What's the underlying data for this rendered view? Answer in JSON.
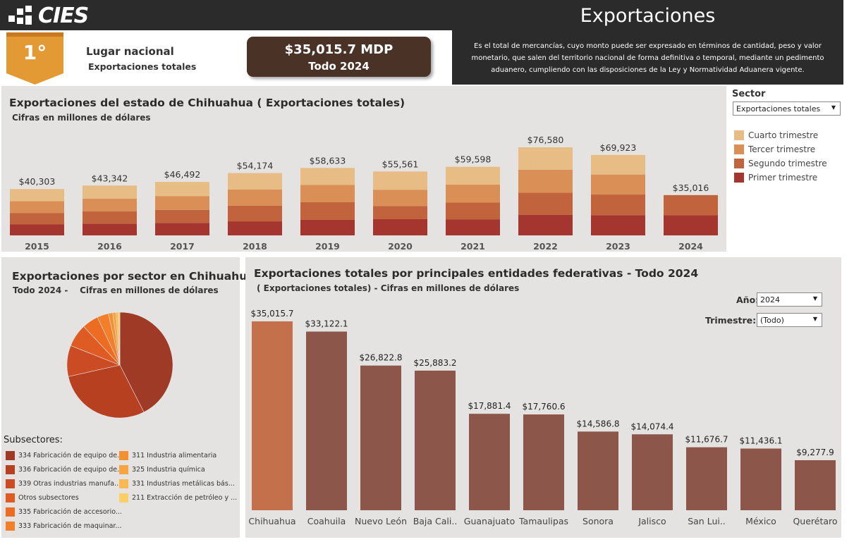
{
  "brand": {
    "logo_text": "CIES"
  },
  "header": {
    "title": "Exportaciones",
    "description": "Es el total de mercancías, cuyo monto puede ser expresado en términos de cantidad, peso y valor monetario, que salen del territorio nacional de forma definitiva o temporal, mediante un pedimento aduanero, cumpliendo con las disposiciones de la Ley y Normatividad Aduanera vigente."
  },
  "ranking": {
    "position": "1°",
    "label": "Lugar nacional",
    "sublabel": "Exportaciones totales"
  },
  "kpi": {
    "value": "$35,015.7 MDP",
    "period": "Todo 2024"
  },
  "annual_panel": {
    "title": "Exportaciones del estado de Chihuahua ( Exportaciones totales)",
    "subtitle": "Cifras en millones de dólares"
  },
  "sector_filter": {
    "label": "Sector",
    "selected": "Exportaciones totales",
    "legend": [
      {
        "label": "Cuarto trimestre",
        "color": "#e8bd85"
      },
      {
        "label": "Tercer trimestre",
        "color": "#d98f55"
      },
      {
        "label": "Segundo trimestre",
        "color": "#c1643e"
      },
      {
        "label": "Primer trimestre",
        "color": "#a4352f"
      }
    ]
  },
  "pie_panel": {
    "title": "Exportaciones por sector en Chihuahua",
    "subtitle": "Todo 2024 -    Cifras en millones de dólares",
    "legend_title": "Subsectores:",
    "legend": [
      {
        "label": "334 Fabricación de equipo de...",
        "color": "#9e3a26"
      },
      {
        "label": "336 Fabricación de equipo de...",
        "color": "#b6401f"
      },
      {
        "label": "339 Otras industrias manufa...",
        "color": "#cb4c24"
      },
      {
        "label": "Otros subsectores",
        "color": "#de5b24"
      },
      {
        "label": "335 Fabricación de accesorio...",
        "color": "#ec6c24"
      },
      {
        "label": "333 Fabricación de maquinar...",
        "color": "#f27f2a"
      },
      {
        "label": "311 Industria alimentaria",
        "color": "#f59030"
      },
      {
        "label": "325 Industria química",
        "color": "#f7a441"
      },
      {
        "label": "331 Industrias metálicas bás...",
        "color": "#f9b851"
      },
      {
        "label": "211 Extracción de petróleo y ...",
        "color": "#fbcf66"
      }
    ]
  },
  "states_panel": {
    "title": "Exportaciones totales por principales entidades federativas - Todo 2024",
    "subtitle": "( Exportaciones totales) - Cifras en millones de dólares",
    "year_label": "Año:",
    "year_value": "2024",
    "quarter_label": "Trimestre:",
    "quarter_value": "(Todo)"
  },
  "chart_data": [
    {
      "type": "bar",
      "stacked": true,
      "title": "Exportaciones del estado de Chihuahua ( Exportaciones totales)",
      "ylabel": "Cifras en millones de dólares",
      "categories": [
        "2015",
        "2016",
        "2017",
        "2018",
        "2019",
        "2020",
        "2021",
        "2022",
        "2023",
        "2024"
      ],
      "totals": [
        "$40,303",
        "$43,342",
        "$46,492",
        "$54,174",
        "$58,633",
        "$55,561",
        "$59,598",
        "$76,580",
        "$69,923",
        "$35,016"
      ],
      "total_values": [
        40303,
        43342,
        46492,
        54174,
        58633,
        55561,
        59598,
        76580,
        69923,
        35016
      ],
      "series": [
        {
          "name": "Primer trimestre",
          "values": [
            9500,
            10200,
            10800,
            12200,
            13500,
            14100,
            14000,
            17800,
            17600,
            17500
          ]
        },
        {
          "name": "Segundo trimestre",
          "values": [
            10000,
            10800,
            11400,
            13600,
            15300,
            11400,
            14500,
            19300,
            18100,
            17516
          ]
        },
        {
          "name": "Tercer trimestre",
          "values": [
            10300,
            11000,
            12000,
            14200,
            15000,
            14200,
            15600,
            20000,
            17200,
            0
          ]
        },
        {
          "name": "Cuarto trimestre",
          "values": [
            10503,
            11342,
            12292,
            14174,
            14833,
            15861,
            15498,
            19480,
            17023,
            0
          ]
        }
      ]
    },
    {
      "type": "pie",
      "title": "Exportaciones por sector en Chihuahua",
      "labels": [
        "334 Fabricación de equipo de...",
        "336 Fabricación de equipo de...",
        "339 Otras industrias manufa...",
        "Otros subsectores",
        "335 Fabricación de accesorio...",
        "333 Fabricación de maquinar...",
        "311 Industria alimentaria",
        "325 Industria química",
        "331 Industrias metálicas bás...",
        "211 Extracción de petróleo y ..."
      ],
      "values": [
        42.5,
        29.0,
        9.5,
        7.0,
        5.0,
        3.5,
        1.3,
        1.0,
        0.7,
        0.5
      ]
    },
    {
      "type": "bar",
      "title": "Exportaciones totales por principales entidades federativas - Todo 2024",
      "categories": [
        "Chihuahua",
        "Coahuila",
        "Nuevo León",
        "Baja Cali..",
        "Guanajuato",
        "Tamaulipas",
        "Sonora",
        "Jalisco",
        "San Lui..",
        "México",
        "Querétaro"
      ],
      "values": [
        35015.7,
        33122.1,
        26822.8,
        25883.2,
        17881.4,
        17760.6,
        14586.8,
        14074.4,
        11676.7,
        11436.1,
        9277.9
      ],
      "value_labels": [
        "$35,015.7",
        "$33,122.1",
        "$26,822.8",
        "$25,883.2",
        "$17,881.4",
        "$17,760.6",
        "$14,586.8",
        "$14,074.4",
        "$11,676.7",
        "$11,436.1",
        "$9,277.9"
      ],
      "highlight": "Chihuahua",
      "colors": {
        "highlight": "#c4704a",
        "default": "#8c564b"
      }
    }
  ]
}
